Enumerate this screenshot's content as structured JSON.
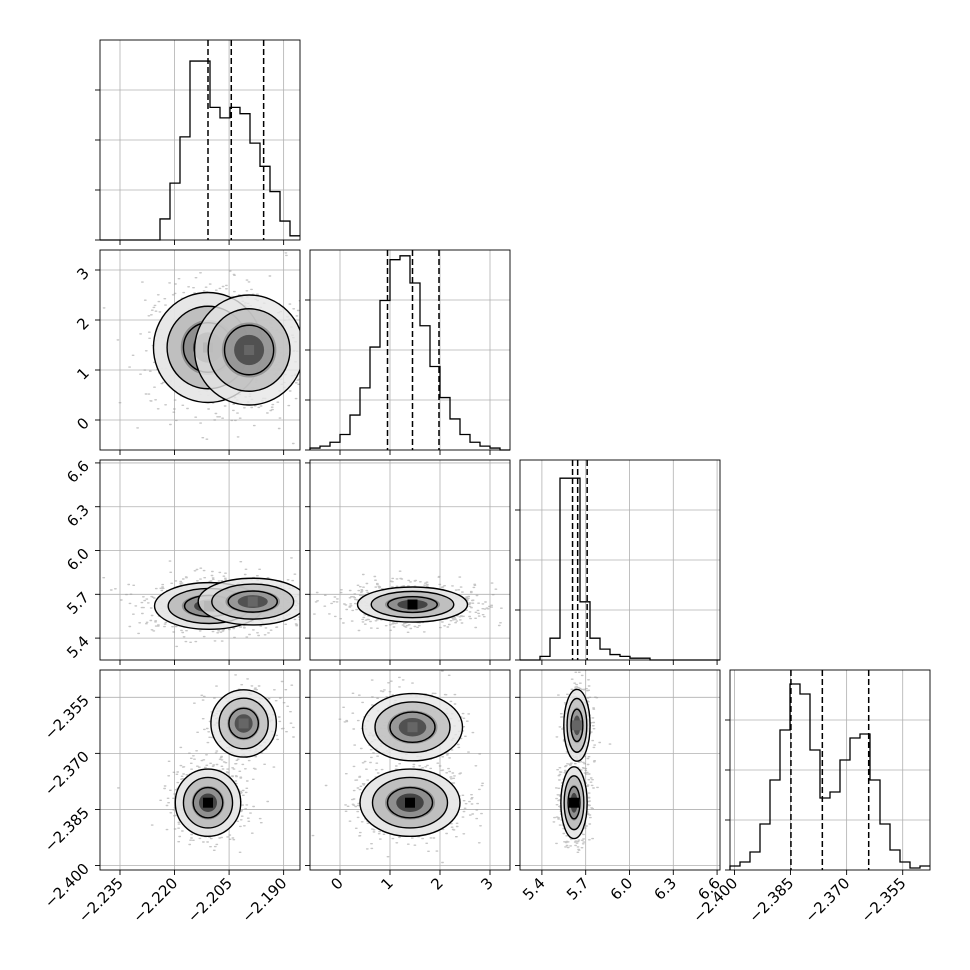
{
  "chart_data": {
    "type": "corner",
    "style": {
      "grid": true,
      "grid_color": "#b0b0b0",
      "line_color": "#000000",
      "point_color": "#999999",
      "background": "#ffffff"
    },
    "params": [
      {
        "range": [
          -2.2405,
          -2.1855
        ],
        "ticks": [
          -2.235,
          -2.22,
          -2.205,
          -2.19
        ],
        "tick_labels": [
          "−2.235",
          "−2.220",
          "−2.205",
          "−2.190"
        ],
        "quantiles": [
          -2.2108,
          -2.2044,
          -2.1955
        ]
      },
      {
        "range": [
          -0.6,
          3.4
        ],
        "ticks": [
          0,
          1,
          2,
          3
        ],
        "tick_labels": [
          "0",
          "1",
          "2",
          "3"
        ],
        "quantiles": [
          0.95,
          1.45,
          1.98
        ]
      },
      {
        "range": [
          5.25,
          6.62
        ],
        "ticks": [
          5.4,
          5.7,
          6.0,
          6.3,
          6.6
        ],
        "tick_labels": [
          "5.4",
          "5.7",
          "6.0",
          "6.3",
          "6.6"
        ],
        "quantiles": [
          5.61,
          5.645,
          5.71
        ]
      },
      {
        "range": [
          -2.4012,
          -2.3477
        ],
        "ticks": [
          -2.4,
          -2.385,
          -2.37,
          -2.355
        ],
        "tick_labels": [
          "−2.400",
          "−2.385",
          "−2.370",
          "−2.355"
        ],
        "quantiles": [
          -2.3849,
          -2.3765,
          -2.3641
        ]
      }
    ],
    "histograms": [
      {
        "param": 0,
        "bins": 20,
        "counts": [
          0,
          0,
          0,
          0,
          0,
          0,
          0.1,
          0.27,
          0.49,
          0.85,
          0.85,
          0.63,
          0.58,
          0.63,
          0.6,
          0.46,
          0.35,
          0.23,
          0.09,
          0.02
        ],
        "ymax": 0.95
      },
      {
        "param": 1,
        "bins": 20,
        "counts": [
          0.01,
          0.02,
          0.04,
          0.08,
          0.18,
          0.32,
          0.53,
          0.77,
          0.98,
          1.0,
          0.86,
          0.64,
          0.43,
          0.27,
          0.16,
          0.08,
          0.04,
          0.02,
          0.01,
          0
        ],
        "ymax": 1.03
      },
      {
        "param": 2,
        "bins": 20,
        "counts": [
          0,
          0,
          0.02,
          0.12,
          1.0,
          1.0,
          0.32,
          0.12,
          0.06,
          0.03,
          0.02,
          0.01,
          0.01,
          0,
          0,
          0,
          0,
          0,
          0,
          0
        ],
        "ymax": 1.1
      },
      {
        "param": 3,
        "bins": 20,
        "counts": [
          0.02,
          0.04,
          0.09,
          0.23,
          0.45,
          0.7,
          0.93,
          0.88,
          0.6,
          0.36,
          0.39,
          0.55,
          0.66,
          0.68,
          0.45,
          0.23,
          0.1,
          0.04,
          0.01,
          0.02
        ],
        "ymax": 1.0
      }
    ],
    "panels_2d": [
      {
        "x": 0,
        "y": 1,
        "density_peaks": [
          {
            "x": -2.2108,
            "y": 1.45,
            "weight": 1.0
          },
          {
            "x": -2.1995,
            "y": 1.4,
            "weight": 0.55
          }
        ],
        "spread": [
          0.0075,
          0.55
        ]
      },
      {
        "x": 0,
        "y": 2,
        "density_peaks": [
          {
            "x": -2.2105,
            "y": 5.62,
            "weight": 1.0
          },
          {
            "x": -2.1985,
            "y": 5.65,
            "weight": 0.5
          }
        ],
        "spread": [
          0.0075,
          0.08
        ]
      },
      {
        "x": 1,
        "y": 2,
        "density_peaks": [
          {
            "x": 1.45,
            "y": 5.63,
            "weight": 1.0
          }
        ],
        "spread": [
          0.55,
          0.06
        ]
      },
      {
        "x": 0,
        "y": 3,
        "density_peaks": [
          {
            "x": -2.2108,
            "y": -2.3832,
            "weight": 1.0
          },
          {
            "x": -2.201,
            "y": -2.362,
            "weight": 0.6
          }
        ],
        "spread": [
          0.0045,
          0.0045
        ]
      },
      {
        "x": 1,
        "y": 3,
        "density_peaks": [
          {
            "x": 1.4,
            "y": -2.3832,
            "weight": 1.0
          },
          {
            "x": 1.45,
            "y": -2.363,
            "weight": 0.6
          }
        ],
        "spread": [
          0.5,
          0.0045
        ]
      },
      {
        "x": 2,
        "y": 3,
        "density_peaks": [
          {
            "x": 5.62,
            "y": -2.3832,
            "weight": 1.0
          },
          {
            "x": 5.64,
            "y": -2.3625,
            "weight": 0.6
          }
        ],
        "spread": [
          0.045,
          0.0048
        ]
      }
    ]
  }
}
